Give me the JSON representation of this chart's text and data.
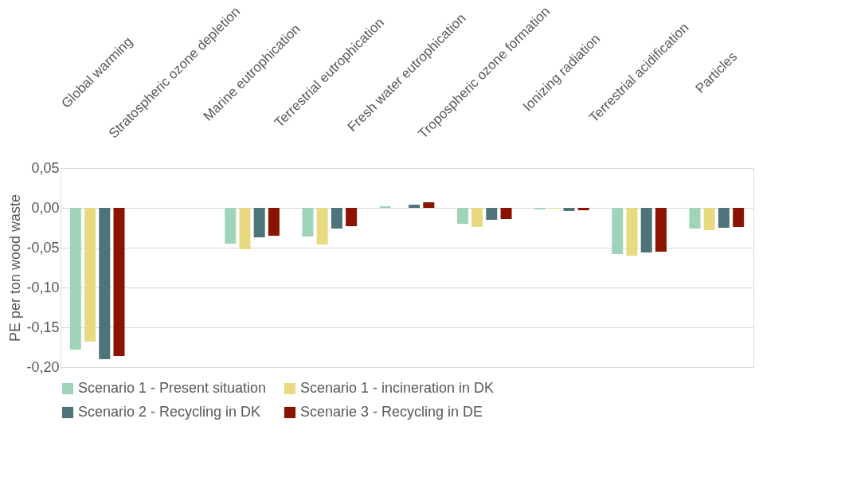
{
  "chart_data": {
    "type": "bar",
    "ylabel": "PE per ton wood waste",
    "categories": [
      "Global warming",
      "Stratospheric ozone depletion",
      "Marine eutrophication",
      "Terrestrial eutrophication",
      "Fresh water eutrophication",
      "Tropospheric ozone formation",
      "Ionizing radiation",
      "Terrestrial acidification",
      "Particles"
    ],
    "series": [
      {
        "name": "Scenario 1 - Present situation",
        "color": "#a0d4b8",
        "values": [
          -0.178,
          0,
          -0.045,
          -0.036,
          0.002,
          -0.02,
          -0.002,
          -0.058,
          -0.026
        ]
      },
      {
        "name": "Scenario 1 - incineration in DK",
        "color": "#e8da80",
        "values": [
          -0.168,
          0,
          -0.052,
          -0.046,
          0.0,
          -0.024,
          -0.001,
          -0.06,
          -0.028
        ]
      },
      {
        "name": "Scenario 2 - Recycling in DK",
        "color": "#4e7479",
        "values": [
          -0.19,
          0,
          -0.037,
          -0.026,
          0.004,
          -0.015,
          -0.004,
          -0.056,
          -0.025
        ]
      },
      {
        "name": "Scenarie 3 - Recycling in DE",
        "color": "#8b1400",
        "values": [
          -0.186,
          0,
          -0.035,
          -0.023,
          0.007,
          -0.014,
          -0.003,
          -0.055,
          -0.024
        ]
      }
    ],
    "ylim": [
      -0.2,
      0.05
    ],
    "yticks": [
      {
        "value": -0.2,
        "label": "-0,20"
      },
      {
        "value": -0.15,
        "label": "-0,15"
      },
      {
        "value": -0.1,
        "label": "-0,10"
      },
      {
        "value": -0.05,
        "label": "-0,05"
      },
      {
        "value": 0,
        "label": "0,00"
      },
      {
        "value": 0.05,
        "label": "0,05"
      }
    ],
    "grid": "y",
    "legend": "bottom"
  }
}
